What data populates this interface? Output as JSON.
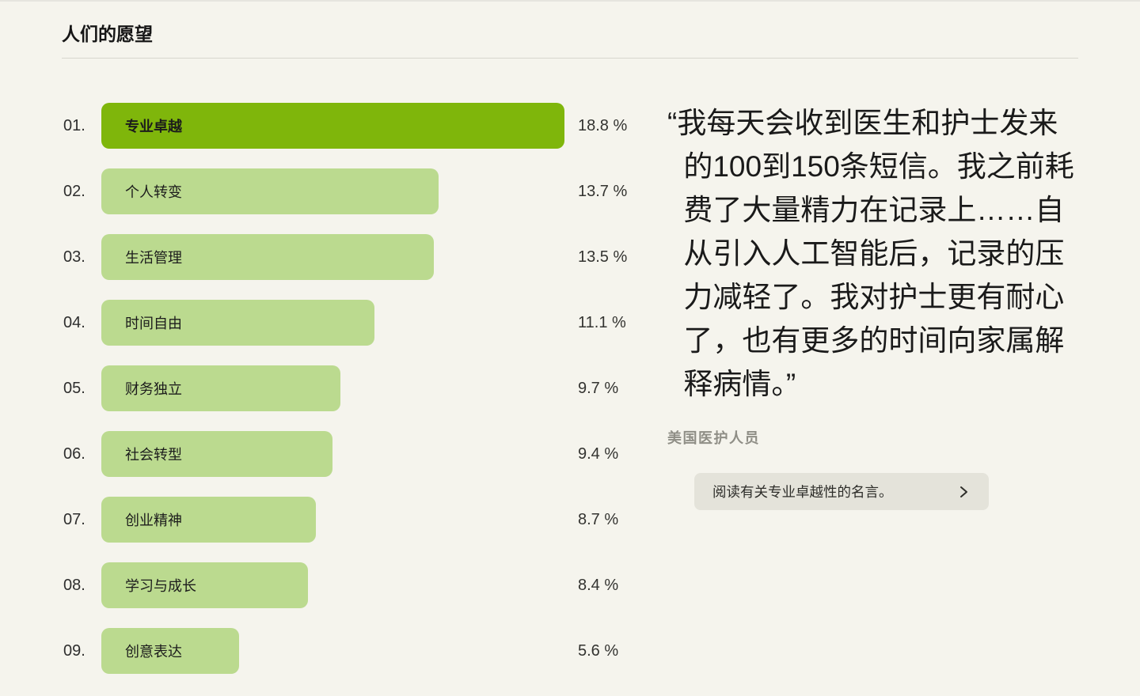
{
  "page": {
    "title": "人们的愿望"
  },
  "colors": {
    "background": "#f5f4ed",
    "divider": "#d8d7ce",
    "bar_highlight": "#7fb60b",
    "bar_normal": "#bbda8f",
    "button_bg": "#e4e3da"
  },
  "chart_data": {
    "type": "bar",
    "orientation": "horizontal",
    "title": "人们的愿望",
    "unit": "%",
    "xlim": [
      0,
      19.4
    ],
    "highlighted_index": 0,
    "indices": [
      "01.",
      "02.",
      "03.",
      "04.",
      "05.",
      "06.",
      "07.",
      "08.",
      "09."
    ],
    "categories": [
      "专业卓越",
      "个人转变",
      "生活管理",
      "时间自由",
      "财务独立",
      "社会转型",
      "创业精神",
      "学习与成长",
      "创意表达"
    ],
    "values": [
      18.8,
      13.7,
      13.5,
      11.1,
      9.7,
      9.4,
      8.7,
      8.4,
      5.6
    ],
    "display_values": [
      "18.8 %",
      "13.7 %",
      "13.5 %",
      "11.1 %",
      "9.7 %",
      "9.4 %",
      "8.7 %",
      "8.4 %",
      "5.6 %"
    ]
  },
  "quote": {
    "text": "“我每天会收到医生和护士发来的100到150条短信。我之前耗费了大量精力在记录上……自从引入人工智能后，记录的压力减轻了。我对护士更有耐心了，也有更多的时间向家属解释病情。”",
    "attribution": "美国医护人员",
    "link_label": "阅读有关专业卓越性的名言。"
  }
}
